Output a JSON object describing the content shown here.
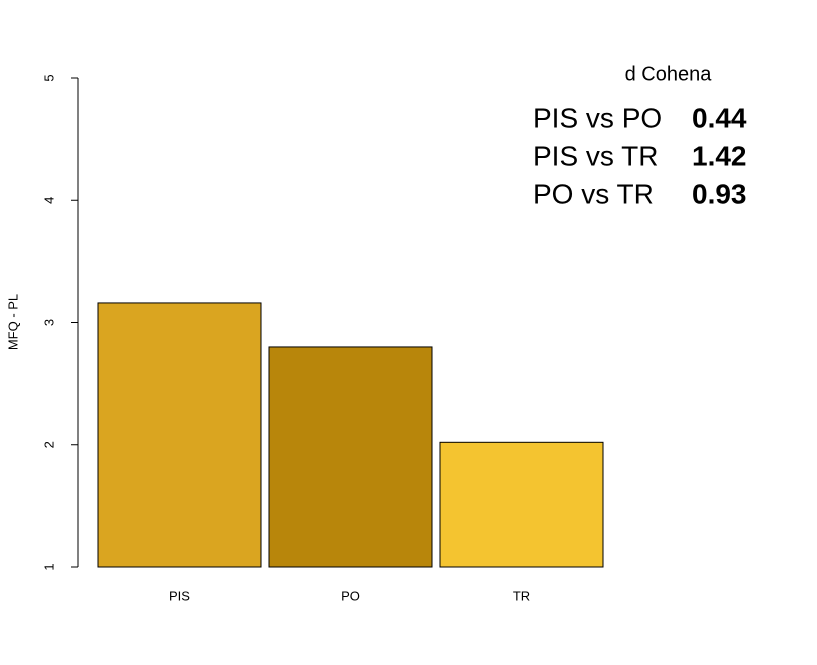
{
  "chart_data": {
    "type": "bar",
    "ylabel": "MFQ - PL",
    "categories": [
      "PIS",
      "PO",
      "TR"
    ],
    "values": [
      3.16,
      2.8,
      2.02
    ],
    "colors": [
      "#daa520",
      "#b8860b",
      "#f4c430"
    ],
    "ylim": [
      1,
      5
    ],
    "yticks": [
      1,
      2,
      3,
      4,
      5
    ],
    "grid": false,
    "annotation": {
      "title": "d Cohena",
      "rows": [
        {
          "label": "PIS vs PO",
          "value": 0.44
        },
        {
          "label": "PIS vs TR",
          "value": 1.42
        },
        {
          "label": "PO vs TR",
          "value": 0.93
        }
      ]
    }
  }
}
